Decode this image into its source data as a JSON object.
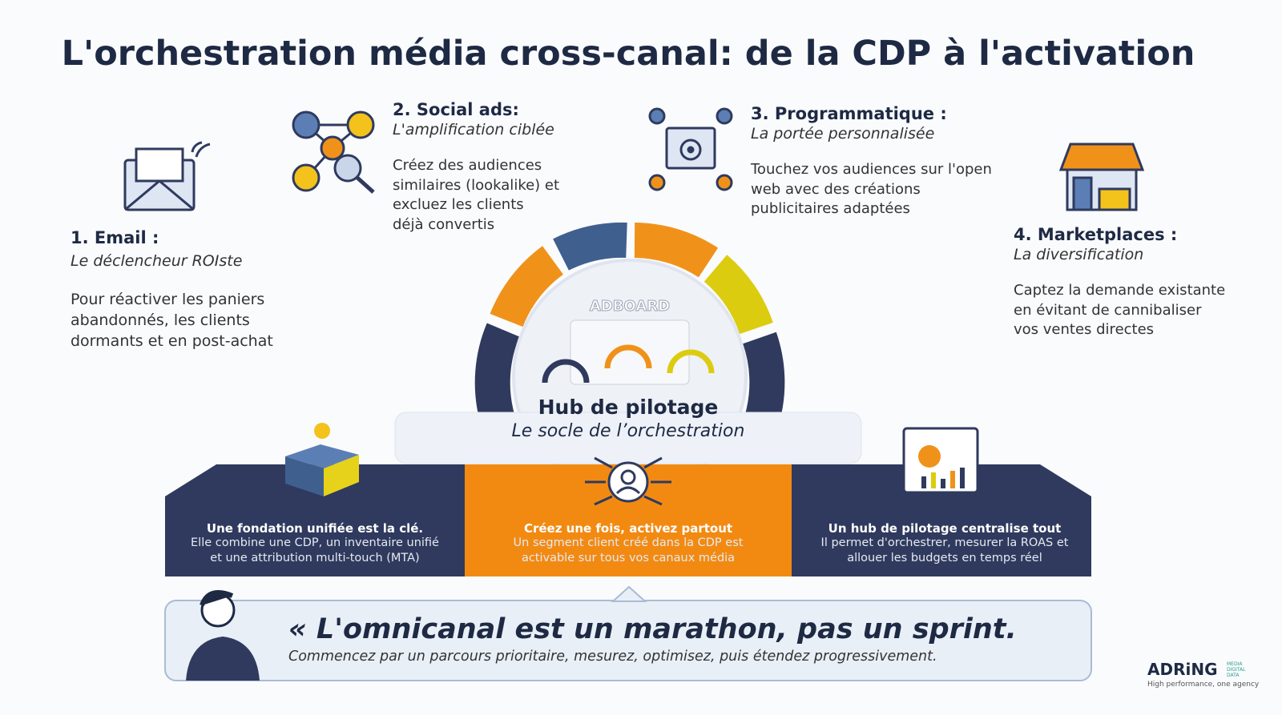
{
  "title": "L'orchestration média cross-canal: de la CDP à l'activation",
  "channels": [
    {
      "title": "1. Email :",
      "subtitle": "Le déclencheur ROIste",
      "lines": [
        "Pour réactiver les paniers",
        "abandonnés, les clients",
        "dormants et en post-achat"
      ]
    },
    {
      "title": "2. Social ads:",
      "subtitle": "L'amplification ciblée",
      "lines": [
        "Créez des audiences",
        "similaires (lookalike) et",
        "excluez les clients",
        "déjà convertis"
      ]
    },
    {
      "title": "3. Programmatique :",
      "subtitle": "La portée personnalisée",
      "lines": [
        "Touchez vos audiences sur l'open",
        "web avec des créations",
        "publicitaires adaptées"
      ]
    },
    {
      "title": "4. Marketplaces :",
      "subtitle": "La diversification",
      "lines": [
        "Captez la demande existante",
        "en évitant de cannibaliser",
        "vos ventes directes"
      ]
    }
  ],
  "hub": {
    "logo": "ADBOARD",
    "title": "Hub de pilotage",
    "subtitle": "Le socle de l’orchestration"
  },
  "pillars": [
    {
      "title": "Une fondation unifiée est la clé.",
      "lines": [
        "Elle combine une CDP, un inventaire unifié",
        "et une attribution multi-touch (MTA)"
      ]
    },
    {
      "title": "Créez une fois, activez partout",
      "lines": [
        "Un segment client créé dans la CDP est",
        "activable sur tous vos canaux média"
      ]
    },
    {
      "title": "Un hub de pilotage centralise tout",
      "lines": [
        "Il permet d'orchestrer, mesurer la ROAS et",
        "allouer les budgets en temps réel"
      ]
    }
  ],
  "quote": {
    "text": "« L'omnicanal est un marathon, pas un sprint.",
    "subtext": "Commencez par un parcours prioritaire, mesurez, optimisez, puis étendez progressivement."
  },
  "brand": {
    "name": "ADRiNG",
    "tag": [
      "MEDIA",
      "DIGITAL",
      "DATA"
    ],
    "slogan": "High performance, one agency"
  }
}
